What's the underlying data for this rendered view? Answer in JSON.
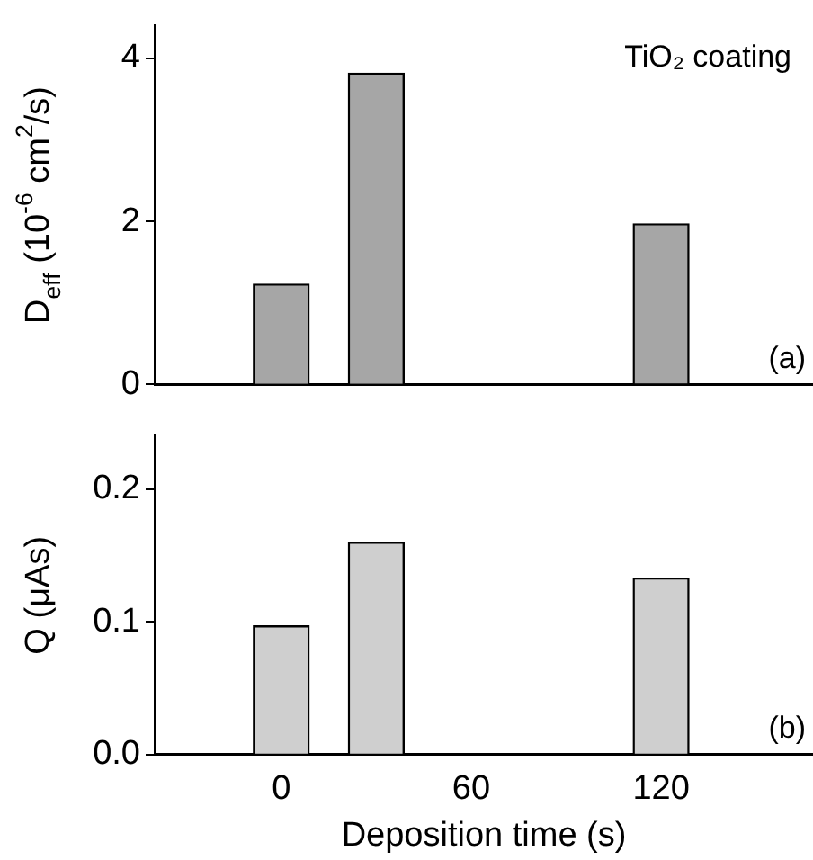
{
  "chart_data": [
    {
      "type": "bar",
      "ylabel": "D$_{eff}$ (10$^{-6}$ cm$^{2}$/s)",
      "annotations": [
        "TiO₂ coating",
        "(a)"
      ],
      "x": [
        0,
        30,
        120
      ],
      "values": [
        1.23,
        3.82,
        1.97
      ],
      "color": "#a6a6a6",
      "xlim": [
        -40,
        168
      ],
      "xticks": [
        0,
        60,
        120
      ],
      "ylim": [
        0,
        4.4
      ],
      "yticks": [
        0,
        2,
        4
      ],
      "tick_labels": "y",
      "grid": false,
      "legend": false
    },
    {
      "type": "bar",
      "xlabel": "Deposition time (s)",
      "ylabel": "Q (μAs)",
      "annotations": [
        "(b)"
      ],
      "x": [
        0,
        30,
        120
      ],
      "values": [
        0.097,
        0.16,
        0.133
      ],
      "color": "#cfcfcf",
      "xlim": [
        -40,
        168
      ],
      "xticks": [
        0,
        60,
        120
      ],
      "ylim": [
        0,
        0.24
      ],
      "yticks": [
        {
          "value": 0,
          "label": "0.0"
        },
        0.1,
        0.2
      ],
      "grid": false,
      "legend": false
    }
  ]
}
